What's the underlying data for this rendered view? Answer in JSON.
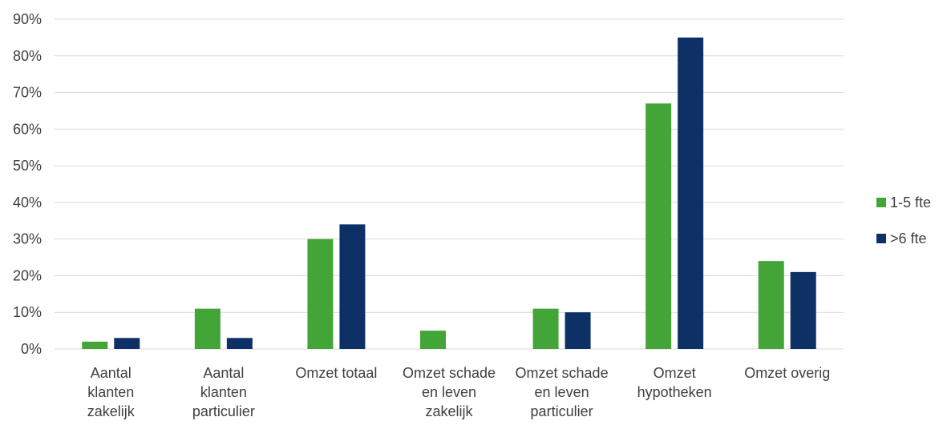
{
  "chart_data": {
    "type": "bar",
    "categories": [
      [
        "Aantal",
        "klanten",
        "zakelijk"
      ],
      [
        "Aantal",
        "klanten",
        "particulier"
      ],
      [
        "Omzet totaal"
      ],
      [
        "Omzet schade",
        "en leven",
        "zakelijk"
      ],
      [
        "Omzet schade",
        "en leven",
        "particulier"
      ],
      [
        "Omzet",
        "hypotheken"
      ],
      [
        "Omzet overig"
      ]
    ],
    "series": [
      {
        "name": "1-5 fte",
        "color": "#43a537",
        "values": [
          2,
          11,
          30,
          5,
          11,
          67,
          24
        ]
      },
      {
        "name": ">6 fte",
        "color": "#0d3066",
        "values": [
          3,
          3,
          34,
          0,
          10,
          85,
          21
        ]
      }
    ],
    "yticks": [
      "0%",
      "10%",
      "20%",
      "30%",
      "40%",
      "50%",
      "60%",
      "70%",
      "80%",
      "90%"
    ],
    "ylim": [
      0,
      90
    ],
    "grid": true,
    "legend_position": "right"
  }
}
